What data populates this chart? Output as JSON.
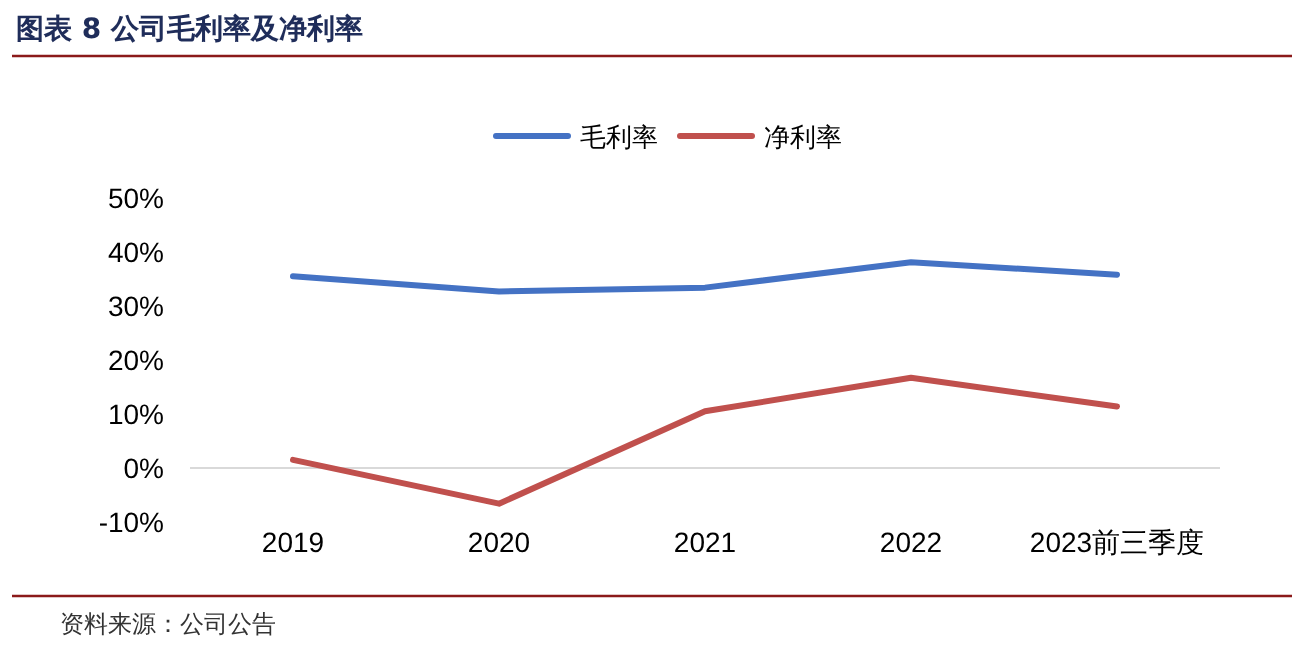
{
  "chart_data": {
    "type": "line",
    "title": "图表 8 公司毛利率及净利率",
    "categories": [
      "2019",
      "2020",
      "2021",
      "2022",
      "2023前三季度"
    ],
    "series": [
      {
        "name": "毛利率",
        "color": "#4472c4",
        "values": [
          35.5,
          32.7,
          33.4,
          38.1,
          35.8
        ]
      },
      {
        "name": "净利率",
        "color": "#c0504d",
        "values": [
          1.5,
          -6.6,
          10.5,
          16.7,
          11.4
        ]
      }
    ],
    "ylim": [
      -10,
      50
    ],
    "yticks": [
      {
        "value": -10,
        "label": "-10%"
      },
      {
        "value": 0,
        "label": "0%"
      },
      {
        "value": 10,
        "label": "10%"
      },
      {
        "value": 20,
        "label": "20%"
      },
      {
        "value": 30,
        "label": "30%"
      },
      {
        "value": 40,
        "label": "40%"
      },
      {
        "value": 50,
        "label": "50%"
      }
    ],
    "grid": false,
    "legend": "top",
    "marker": "none",
    "line_style": "solid",
    "annotations": [
      "资料来源：公司公告"
    ]
  }
}
